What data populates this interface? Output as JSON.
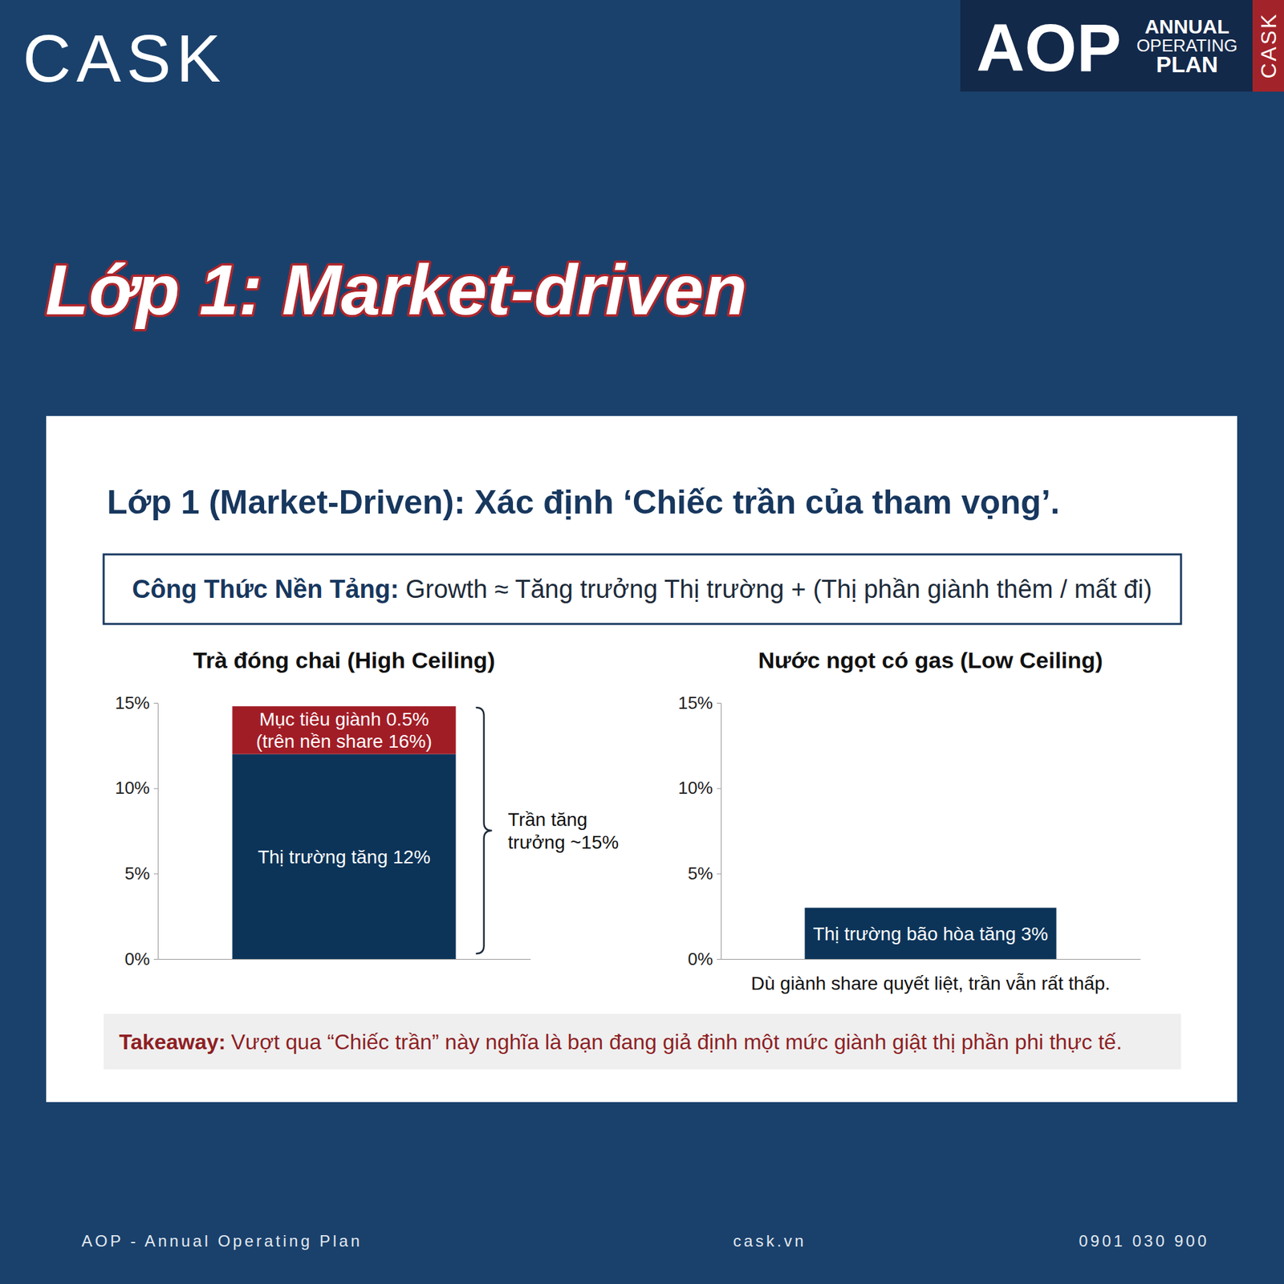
{
  "header": {
    "logo": "CASK",
    "badge": {
      "big": "AOP",
      "lines": [
        "ANNUAL",
        "OPERATING",
        "PLAN"
      ],
      "side": "CASK"
    }
  },
  "slide_title": "Lớp 1: Market-driven",
  "panel": {
    "title": "Lớp 1 (Market-Driven): Xác định ‘Chiếc trần của tham vọng’.",
    "formula": {
      "label": "Công Thức Nền Tảng:",
      "text": "Growth ≈ Tăng trưởng Thị trường + (Thị phần giành thêm / mất đi)"
    },
    "takeaway": {
      "label": "Takeaway:",
      "text": "Vượt qua “Chiếc trần” này nghĩa là bạn đang giả định một mức giành giật thị phần phi thực tế."
    }
  },
  "chart_data": [
    {
      "type": "bar",
      "stacked": true,
      "grid": false,
      "title": "Trà đóng chai (High Ceiling)",
      "categories": [
        null
      ],
      "series": [
        {
          "name": "Thị trường tăng 12%",
          "color": "#0c3459",
          "values": [
            12
          ]
        },
        {
          "name": "Mục tiêu giành 0.5% (trên nền share 16%)",
          "color": "#a11d26",
          "values": [
            2.8
          ]
        }
      ],
      "ylim": [
        0,
        15
      ],
      "yticks": [
        {
          "value": 0,
          "label": "0%"
        },
        {
          "value": 5,
          "label": "5%"
        },
        {
          "value": 10,
          "label": "10%"
        },
        {
          "value": 15,
          "label": "15%"
        }
      ],
      "annotations": [
        "Trần tăng trưởng ~15%"
      ]
    },
    {
      "type": "bar",
      "stacked": true,
      "grid": false,
      "title": "Nước ngọt có gas (Low Ceiling)",
      "categories": [
        null
      ],
      "series": [
        {
          "name": "Thị trường bão hòa tăng 3%",
          "color": "#0c3459",
          "values": [
            3
          ]
        }
      ],
      "ylim": [
        0,
        15
      ],
      "yticks": [
        {
          "value": 0,
          "label": "0%"
        },
        {
          "value": 5,
          "label": "5%"
        },
        {
          "value": 10,
          "label": "10%"
        },
        {
          "value": 15,
          "label": "15%"
        }
      ],
      "note": "Dù giành share quyết liệt, trần vẫn rất thấp."
    }
  ],
  "footer": {
    "left": "AOP - Annual Operating Plan",
    "center": "cask.vn",
    "right": "0901 030 900"
  }
}
